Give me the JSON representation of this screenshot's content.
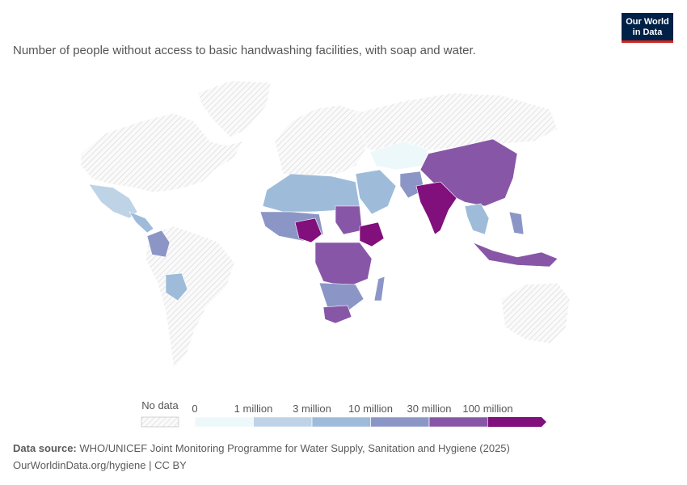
{
  "logo": {
    "line1": "Our World",
    "line2": "in Data"
  },
  "subtitle": "Number of people without access to basic handwashing facilities, with soap and water.",
  "legend": {
    "no_data": "No data",
    "ticks": [
      0,
      {
        "value": 1000000,
        "label": "1 million"
      },
      {
        "value": 3000000,
        "label": "3 million"
      },
      {
        "value": 10000000,
        "label": "10 million"
      },
      {
        "value": 30000000,
        "label": "30 million"
      },
      {
        "value": 100000000,
        "label": "100 million"
      }
    ],
    "colors": [
      "#edf8fb",
      "#bfd3e6",
      "#9ebcda",
      "#8c96c6",
      "#8856a7",
      "#810f7c"
    ]
  },
  "footer": {
    "source_label": "Data source:",
    "source": "WHO/UNICEF Joint Monitoring Programme for Water Supply, Sanitation and Hygiene (2025)",
    "url": "OurWorldinData.org/hygiene | CC BY"
  }
}
